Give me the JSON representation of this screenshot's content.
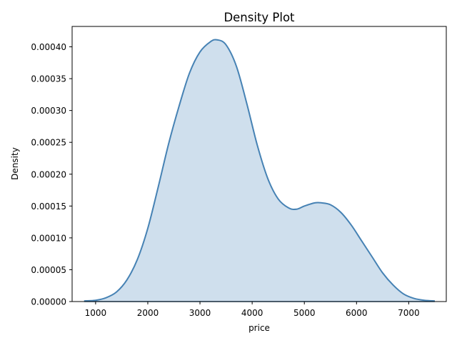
{
  "chart_data": {
    "type": "area",
    "title": "Density Plot",
    "xlabel": "price",
    "ylabel": "Density",
    "xlim": [
      550,
      7720
    ],
    "ylim": [
      0,
      0.000432
    ],
    "x_ticks": [
      1000,
      2000,
      3000,
      4000,
      5000,
      6000,
      7000
    ],
    "x_tick_labels": [
      "1000",
      "2000",
      "3000",
      "4000",
      "5000",
      "6000",
      "7000"
    ],
    "y_ticks": [
      0,
      5e-05,
      0.0001,
      0.00015,
      0.0002,
      0.00025,
      0.0003,
      0.00035,
      0.0004
    ],
    "y_tick_labels": [
      "0.00000",
      "0.00005",
      "0.00010",
      "0.00015",
      "0.00020",
      "0.00025",
      "0.00030",
      "0.00035",
      "0.00040"
    ],
    "grid": false,
    "legend": "none",
    "series": [
      {
        "x": [
          780,
          1000,
          1200,
          1400,
          1600,
          1800,
          2000,
          2200,
          2400,
          2600,
          2800,
          3000,
          3200,
          3330,
          3500,
          3700,
          3900,
          4100,
          4300,
          4500,
          4700,
          4850,
          5000,
          5200,
          5330,
          5500,
          5700,
          5900,
          6100,
          6300,
          6500,
          6700,
          6900,
          7100,
          7300,
          7500
        ],
        "y": [
          1e-06,
          2e-06,
          6e-06,
          1.5e-05,
          3.4e-05,
          6.6e-05,
          0.000115,
          0.00018,
          0.000248,
          0.000307,
          0.000359,
          0.000392,
          0.000408,
          0.000411,
          0.000403,
          0.000369,
          0.00031,
          0.000245,
          0.000193,
          0.000161,
          0.000147,
          0.000145,
          0.00015,
          0.000155,
          0.000155,
          0.000152,
          0.00014,
          0.00012,
          9.5e-05,
          7e-05,
          4.5e-05,
          2.6e-05,
          1.2e-05,
          5e-06,
          2e-06,
          1e-06
        ]
      }
    ],
    "colors": {
      "line": "#4682b4",
      "fill": "#cfdfed"
    }
  }
}
